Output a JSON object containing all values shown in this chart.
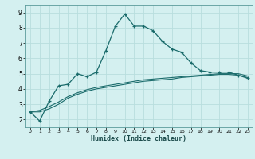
{
  "xlabel": "Humidex (Indice chaleur)",
  "bg_color": "#d4f0f0",
  "line_color": "#1a6b6b",
  "grid_color": "#b8dede",
  "xlim": [
    -0.5,
    23.5
  ],
  "ylim": [
    1.5,
    9.5
  ],
  "xticks": [
    0,
    1,
    2,
    3,
    4,
    5,
    6,
    7,
    8,
    9,
    10,
    11,
    12,
    13,
    14,
    15,
    16,
    17,
    18,
    19,
    20,
    21,
    22,
    23
  ],
  "yticks": [
    2,
    3,
    4,
    5,
    6,
    7,
    8,
    9
  ],
  "line1_x": [
    0,
    1,
    2,
    3,
    4,
    5,
    6,
    7,
    8,
    9,
    10,
    11,
    12,
    13,
    14,
    15,
    16,
    17,
    18,
    19,
    20,
    21,
    22,
    23
  ],
  "line1_y": [
    2.5,
    1.9,
    3.2,
    4.2,
    4.3,
    5.0,
    4.8,
    5.1,
    6.5,
    8.1,
    8.9,
    8.1,
    8.1,
    7.8,
    7.1,
    6.6,
    6.4,
    5.7,
    5.2,
    5.1,
    5.1,
    5.1,
    4.9,
    4.7
  ],
  "line2_x": [
    0,
    1,
    2,
    3,
    4,
    5,
    6,
    7,
    8,
    9,
    10,
    11,
    12,
    13,
    14,
    15,
    16,
    17,
    18,
    19,
    20,
    21,
    22,
    23
  ],
  "line2_y": [
    2.5,
    2.6,
    2.85,
    3.15,
    3.5,
    3.75,
    3.95,
    4.1,
    4.2,
    4.3,
    4.4,
    4.5,
    4.6,
    4.65,
    4.7,
    4.75,
    4.8,
    4.85,
    4.9,
    4.95,
    5.0,
    5.0,
    5.0,
    4.85
  ],
  "line3_x": [
    0,
    1,
    2,
    3,
    4,
    5,
    6,
    7,
    8,
    9,
    10,
    11,
    12,
    13,
    14,
    15,
    16,
    17,
    18,
    19,
    20,
    21,
    22,
    23
  ],
  "line3_y": [
    2.5,
    2.5,
    2.7,
    3.0,
    3.4,
    3.65,
    3.85,
    4.0,
    4.1,
    4.2,
    4.3,
    4.4,
    4.5,
    4.55,
    4.6,
    4.65,
    4.75,
    4.8,
    4.85,
    4.9,
    4.95,
    4.95,
    4.9,
    4.75
  ]
}
